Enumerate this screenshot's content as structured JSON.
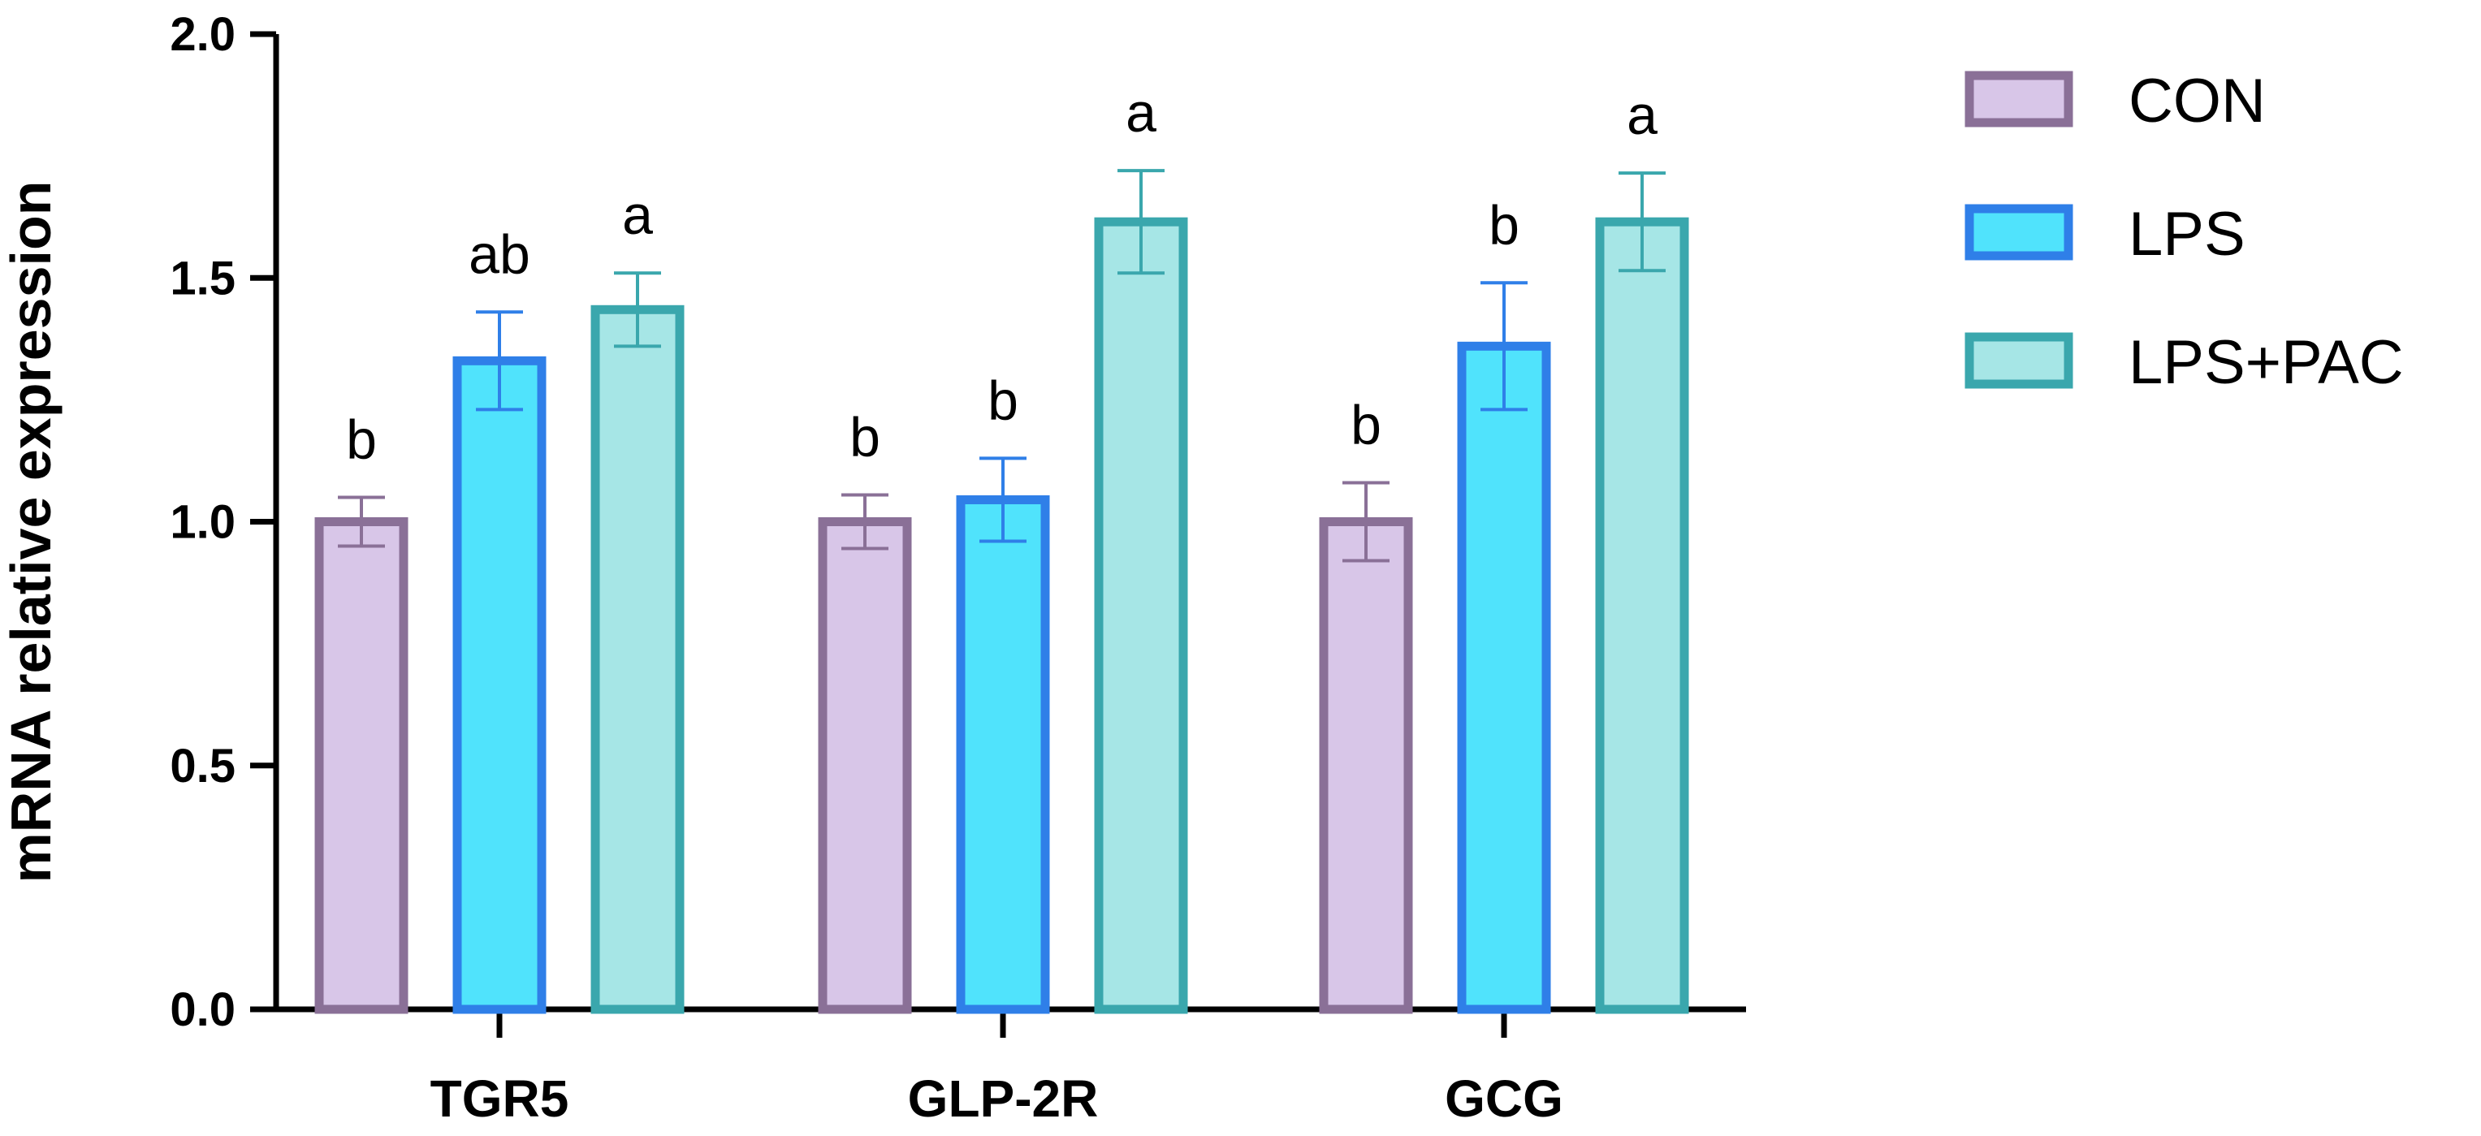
{
  "chart_data": {
    "type": "bar",
    "title": "",
    "xlabel": "",
    "ylabel": "mRNA relative  expression",
    "ylim": [
      0,
      2.0
    ],
    "yticks": [
      "0.0",
      "0.5",
      "1.0",
      "1.5",
      "2.0"
    ],
    "categories": [
      "TGR5",
      "GLP-2R",
      "GCG"
    ],
    "series": [
      {
        "name": "CON",
        "fill": "#d8c6e8",
        "stroke": "#8a7097",
        "values": [
          1.0,
          1.0,
          1.0
        ],
        "errors": [
          0.05,
          0.055,
          0.08
        ],
        "significance": [
          "b",
          "b",
          "b"
        ]
      },
      {
        "name": "LPS",
        "fill": "#50e3fc",
        "stroke": "#2f7fe8",
        "values": [
          1.33,
          1.045,
          1.36
        ],
        "errors": [
          0.1,
          0.085,
          0.13
        ],
        "significance": [
          "ab",
          "b",
          "b"
        ]
      },
      {
        "name": "LPS+PAC",
        "fill": "#a6e6e6",
        "stroke": "#3aa7ad",
        "values": [
          1.435,
          1.615,
          1.615
        ],
        "errors": [
          0.075,
          0.105,
          0.1
        ],
        "significance": [
          "a",
          "a",
          "a"
        ]
      }
    ],
    "legend_position": "top-right",
    "grid": false
  }
}
